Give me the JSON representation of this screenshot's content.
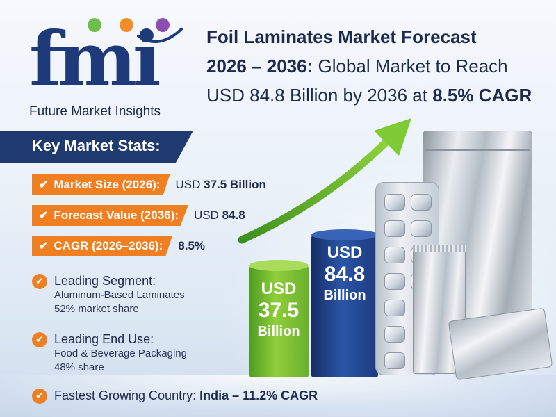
{
  "logo": {
    "letters": "fmi",
    "tagline": "Future Market Insights",
    "dot_colors": [
      "#6cc04a",
      "#f28c28",
      "#8a4fb0"
    ]
  },
  "headline": {
    "title_line1": "Foil Laminates Market Forecast",
    "years": "2026 – 2036:",
    "rest_line2": "Global Market to Reach",
    "line3_prefix": "USD 84.8 Billion by 2036 at",
    "line3_cagr": "8.5% CAGR"
  },
  "stats": {
    "heading": "Key Market Stats:",
    "rows": [
      {
        "label": "Market Size (2026):",
        "value_plain": "USD",
        "value_bold": "37.5 Billion"
      },
      {
        "label": "Forecast Value (2036):",
        "value_plain": "USD",
        "value_bold": "84.8"
      },
      {
        "label": "CAGR (2026–2036):",
        "value_plain": "",
        "value_bold": "8.5%"
      }
    ]
  },
  "highlights": [
    {
      "title": "Leading Segment:",
      "lines": [
        "Aluminum-Based Laminates",
        "52% market share"
      ]
    },
    {
      "title": "Leading End Use:",
      "lines": [
        "Food & Beverage Packaging",
        "48% share"
      ]
    },
    {
      "title_plain": "Fastest Growing Country:",
      "title_bold": "India – 11.2% CAGR"
    }
  ],
  "columns": {
    "green": {
      "l1": "USD",
      "l2": "37.5",
      "l3": "Billion"
    },
    "blue": {
      "l1": "USD",
      "l2": "84.8",
      "l3": "Billion"
    }
  },
  "colors": {
    "navy": "#1f3a6e",
    "orange": "#f07f22",
    "green": "#6ab02c",
    "blue": "#1b3b80"
  },
  "icons": [
    "check-icon",
    "growth-arrow-icon",
    "blister-pack-image",
    "foil-pouch-image"
  ]
}
